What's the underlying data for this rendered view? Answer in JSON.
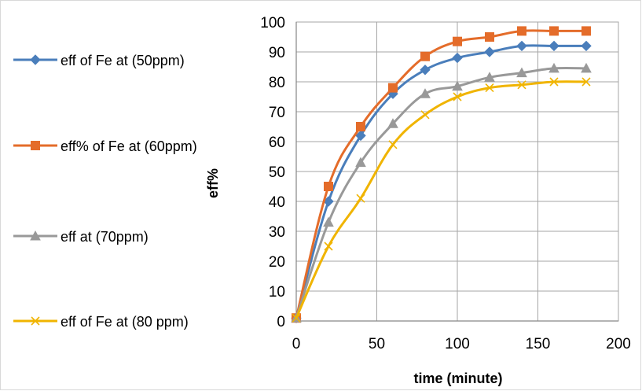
{
  "chart_data": {
    "type": "line",
    "title": "",
    "xlabel": "time (minute)",
    "ylabel": "eff%",
    "xlim": [
      0,
      200
    ],
    "ylim": [
      0,
      100
    ],
    "xticks": [
      0,
      50,
      100,
      150,
      200
    ],
    "yticks": [
      0,
      10,
      20,
      30,
      40,
      50,
      60,
      70,
      80,
      90,
      100
    ],
    "grid": true,
    "legend_position": "left",
    "x": [
      0,
      20,
      40,
      60,
      80,
      100,
      120,
      140,
      160,
      180
    ],
    "series": [
      {
        "name": "eff of Fe at (50ppm)",
        "color": "#4a7ebb",
        "marker": "diamond",
        "values": [
          1,
          40,
          62,
          76,
          84,
          88,
          90,
          92,
          92,
          92
        ]
      },
      {
        "name": "eff% of Fe at (60ppm)",
        "color": "#e46c2a",
        "marker": "square",
        "values": [
          1,
          45,
          65,
          78,
          88.5,
          93.5,
          95,
          97,
          97,
          97
        ]
      },
      {
        "name": "eff at (70ppm)",
        "color": "#999999",
        "marker": "triangle",
        "values": [
          1,
          33,
          53,
          66,
          76,
          78.5,
          81.5,
          83,
          84.5,
          84.5
        ]
      },
      {
        "name": "eff of Fe at (80 ppm)",
        "color": "#f0b400",
        "marker": "x",
        "values": [
          1,
          25,
          41,
          59,
          69,
          75,
          78,
          79,
          80,
          80
        ]
      }
    ]
  }
}
